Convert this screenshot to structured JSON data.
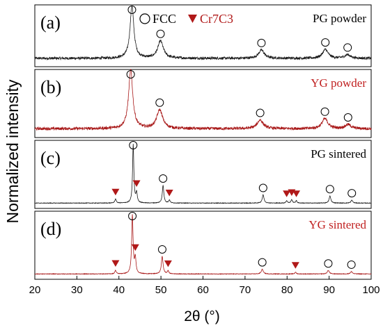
{
  "chart_data": {
    "type": "line",
    "xlabel": "2θ (°)",
    "ylabel": "Normalized intensity",
    "xlim": [
      20,
      100
    ],
    "x_ticks": [
      20,
      30,
      40,
      50,
      60,
      70,
      80,
      90,
      100
    ],
    "grid": false,
    "legend": [
      {
        "label": "FCC",
        "marker": "open-circle",
        "color": "#000000"
      },
      {
        "label": "Cr7C3",
        "marker": "filled-down-triangle",
        "color": "#b01818"
      }
    ],
    "panels": [
      {
        "label": "(a)",
        "name": "PG powder",
        "name_color": "#000000",
        "line_color": "#1a1a1a",
        "baseline": 0.08,
        "noise": 0.025,
        "peaks": [
          {
            "x": 43.1,
            "height": 1.0,
            "width": 0.55,
            "marker": "FCC"
          },
          {
            "x": 49.9,
            "height": 0.33,
            "width": 0.8,
            "marker": "FCC"
          },
          {
            "x": 73.9,
            "height": 0.16,
            "width": 0.8,
            "marker": "FCC"
          },
          {
            "x": 89.1,
            "height": 0.17,
            "width": 0.8,
            "marker": "FCC"
          },
          {
            "x": 94.4,
            "height": 0.07,
            "width": 0.8,
            "marker": "FCC"
          }
        ]
      },
      {
        "label": "(b)",
        "name": "YG powder",
        "name_color": "#c02020",
        "line_color": "#a81818",
        "baseline": 0.08,
        "noise": 0.025,
        "peaks": [
          {
            "x": 42.8,
            "height": 1.0,
            "width": 0.6,
            "marker": "FCC"
          },
          {
            "x": 49.7,
            "height": 0.32,
            "width": 0.85,
            "marker": "FCC"
          },
          {
            "x": 73.6,
            "height": 0.15,
            "width": 0.85,
            "marker": "FCC"
          },
          {
            "x": 89.0,
            "height": 0.17,
            "width": 0.85,
            "marker": "FCC"
          },
          {
            "x": 94.5,
            "height": 0.07,
            "width": 0.85,
            "marker": "FCC"
          }
        ]
      },
      {
        "label": "(c)",
        "name": "PG sintered",
        "name_color": "#000000",
        "line_color": "#1a1a1a",
        "baseline": 0.02,
        "noise": 0.005,
        "peaks": [
          {
            "x": 43.4,
            "height": 1.0,
            "width": 0.18,
            "marker": "FCC"
          },
          {
            "x": 50.5,
            "height": 0.3,
            "width": 0.22,
            "marker": "FCC"
          },
          {
            "x": 74.3,
            "height": 0.14,
            "width": 0.25,
            "marker": "FCC"
          },
          {
            "x": 90.2,
            "height": 0.12,
            "width": 0.25,
            "marker": "FCC"
          },
          {
            "x": 95.4,
            "height": 0.05,
            "width": 0.25,
            "marker": "FCC"
          },
          {
            "x": 39.2,
            "height": 0.07,
            "width": 0.2,
            "marker": "Cr7C3"
          },
          {
            "x": 44.2,
            "height": 0.17,
            "width": 0.2,
            "marker": "Cr7C3"
          },
          {
            "x": 52.0,
            "height": 0.05,
            "width": 0.2,
            "marker": "Cr7C3"
          },
          {
            "x": 79.9,
            "height": 0.04,
            "width": 0.2,
            "marker": "Cr7C3"
          },
          {
            "x": 81.1,
            "height": 0.06,
            "width": 0.2,
            "marker": "Cr7C3"
          },
          {
            "x": 82.2,
            "height": 0.04,
            "width": 0.2,
            "marker": "Cr7C3"
          }
        ]
      },
      {
        "label": "(d)",
        "name": "YG sintered",
        "name_color": "#c02020",
        "line_color": "#a81818",
        "baseline": 0.02,
        "noise": 0.005,
        "peaks": [
          {
            "x": 43.2,
            "height": 1.0,
            "width": 0.2,
            "marker": "FCC"
          },
          {
            "x": 50.3,
            "height": 0.3,
            "width": 0.24,
            "marker": "FCC"
          },
          {
            "x": 74.1,
            "height": 0.08,
            "width": 0.28,
            "marker": "FCC"
          },
          {
            "x": 89.8,
            "height": 0.06,
            "width": 0.28,
            "marker": "FCC"
          },
          {
            "x": 95.3,
            "height": 0.04,
            "width": 0.28,
            "marker": "FCC"
          },
          {
            "x": 39.2,
            "height": 0.06,
            "width": 0.2,
            "marker": "Cr7C3"
          },
          {
            "x": 43.9,
            "height": 0.26,
            "width": 0.2,
            "marker": "Cr7C3"
          },
          {
            "x": 51.7,
            "height": 0.05,
            "width": 0.2,
            "marker": "Cr7C3"
          },
          {
            "x": 82.0,
            "height": 0.03,
            "width": 0.2,
            "marker": "Cr7C3"
          }
        ]
      }
    ]
  }
}
